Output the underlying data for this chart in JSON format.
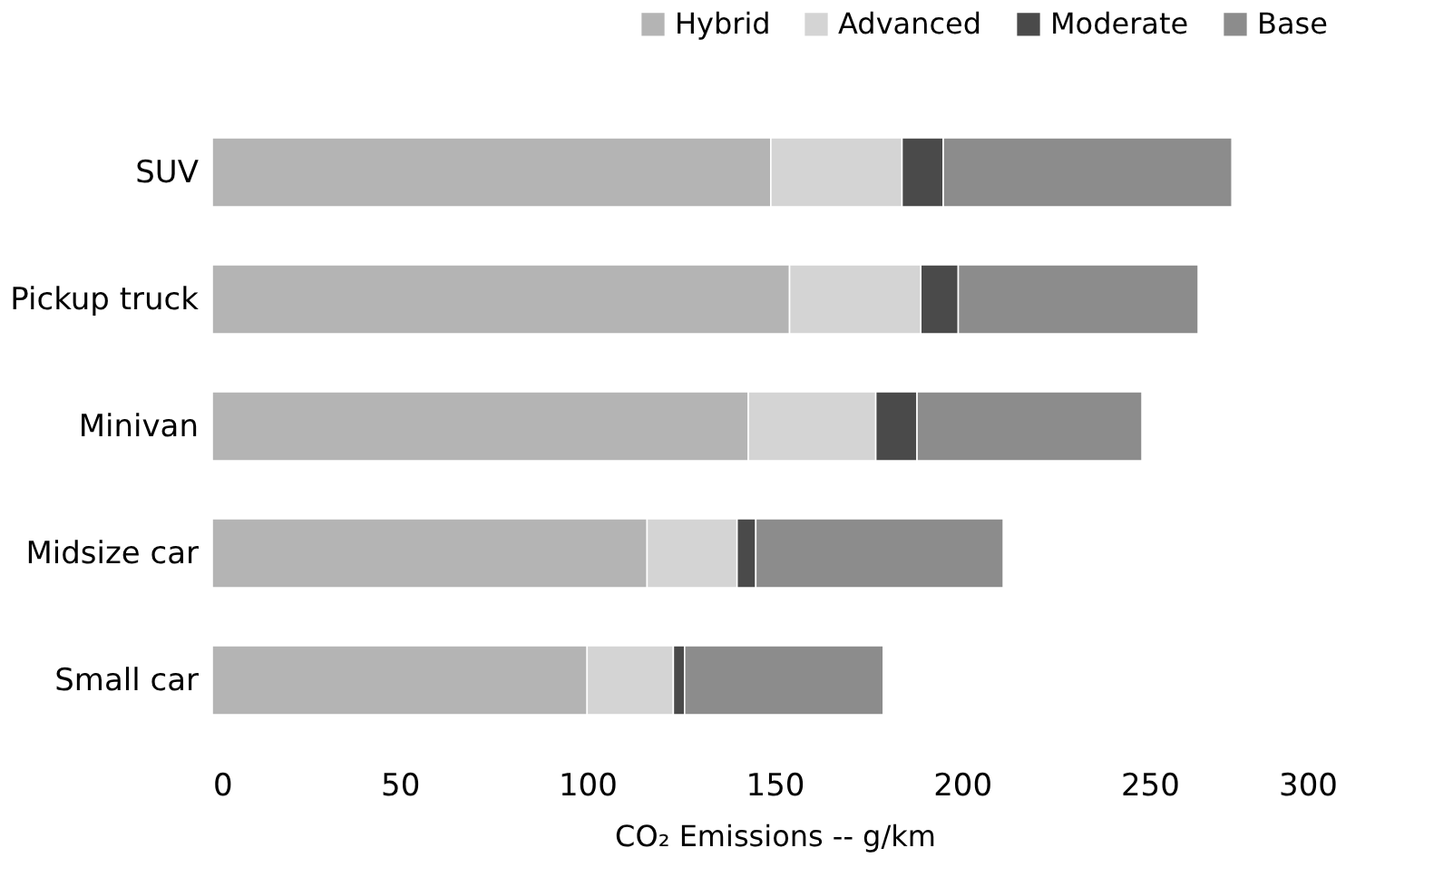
{
  "chart_data": {
    "type": "bar",
    "orientation": "horizontal",
    "stacked": true,
    "xlabel": "CO₂ Emissions -- g/km",
    "categories": [
      "SUV",
      "Pickup truck",
      "Minivan",
      "Midsize car",
      "Small car"
    ],
    "series": [
      {
        "name": "Hybrid",
        "color": "#b4b4b4",
        "values": [
          149,
          154,
          143,
          116,
          100
        ]
      },
      {
        "name": "Advanced",
        "color": "#d4d4d4",
        "values": [
          35,
          35,
          34,
          24,
          23
        ]
      },
      {
        "name": "Moderate",
        "color": "#4a4a4a",
        "values": [
          11,
          10,
          11,
          5,
          3
        ]
      },
      {
        "name": "Base",
        "color": "#8c8c8c",
        "values": [
          77,
          64,
          60,
          66,
          53
        ]
      }
    ],
    "xlim": [
      0,
      300
    ],
    "xticks": [
      0,
      50,
      100,
      150,
      200,
      250,
      300
    ],
    "grid": false,
    "legend": "top right"
  }
}
